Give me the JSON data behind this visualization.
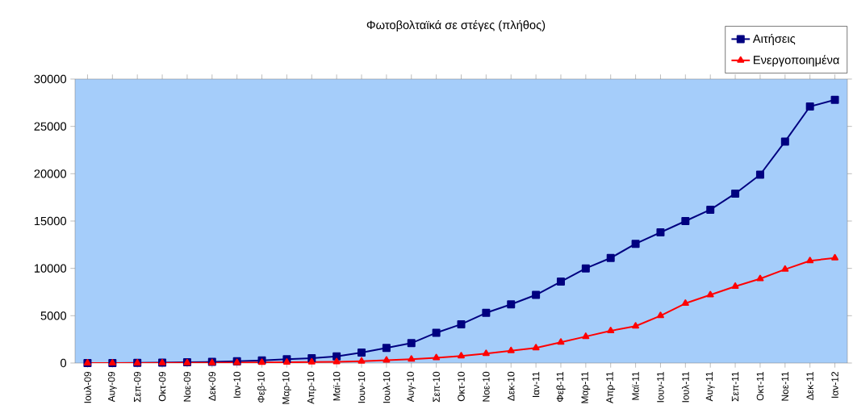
{
  "chart_data": {
    "type": "line",
    "title": "Φωτοβολταϊκά σε στέγες (πλήθος)",
    "categories": [
      "Ιουλ-09",
      "Αυγ-09",
      "Σεπ-09",
      "Οκτ-09",
      "Νοε-09",
      "Δεκ-09",
      "Ιαν-10",
      "Φεβ-10",
      "Μαρ-10",
      "Απρ-10",
      "Μαϊ-10",
      "Ιουν-10",
      "Ιουλ-10",
      "Αυγ-10",
      "Σεπ-10",
      "Οκτ-10",
      "Νοε-10",
      "Δεκ-10",
      "Ιαν-11",
      "Φεβ-11",
      "Μαρ-11",
      "Απρ-11",
      "Μαϊ-11",
      "Ιουν-11",
      "Ιουλ-11",
      "Αυγ-11",
      "Σεπ-11",
      "Οκτ-11",
      "Νοε-11",
      "Δεκ-11",
      "Ιαν-12"
    ],
    "series": [
      {
        "name": "Αιτήσεις",
        "color": "#000080",
        "marker": "square",
        "values": [
          0,
          0,
          20,
          50,
          80,
          120,
          180,
          270,
          400,
          500,
          700,
          1100,
          1600,
          2100,
          3200,
          4100,
          5300,
          6200,
          7200,
          8600,
          10000,
          11100,
          12600,
          13800,
          15000,
          16200,
          17900,
          19900,
          23400,
          27100,
          27800
        ]
      },
      {
        "name": "Ενεργοποιημένα",
        "color": "#ff0000",
        "marker": "triangle",
        "values": [
          0,
          0,
          0,
          10,
          20,
          30,
          40,
          60,
          80,
          100,
          130,
          200,
          300,
          400,
          550,
          750,
          1000,
          1300,
          1600,
          2200,
          2800,
          3400,
          3900,
          5000,
          6300,
          7200,
          8100,
          8900,
          9900,
          10800,
          11100
        ]
      }
    ],
    "ylim": [
      0,
      30000
    ],
    "yticks": [
      0,
      5000,
      10000,
      15000,
      20000,
      25000,
      30000
    ],
    "grid": false,
    "legend": "top right",
    "line_style": "solid"
  }
}
